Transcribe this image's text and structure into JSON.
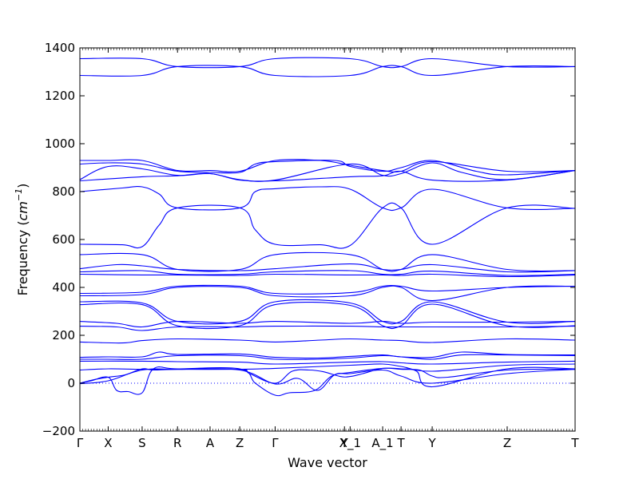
{
  "chart_data": {
    "type": "line",
    "title": "",
    "xlabel": "Wave vector",
    "ylabel_prefix": "Frequency (",
    "ylabel_unit_base": "cm",
    "ylabel_unit_exp": "−1",
    "ylabel_suffix": ")",
    "ylim": [
      -200,
      1400
    ],
    "xlim": [
      0,
      17.5
    ],
    "grid": false,
    "legend": "none",
    "line_color": "#0000ff",
    "zero_line_color": "#0000ff",
    "yticks": [
      -200,
      0,
      200,
      400,
      600,
      800,
      1000,
      1200,
      1400
    ],
    "xticks": [
      {
        "label": "Γ",
        "x": 0
      },
      {
        "label": "X",
        "x": 1
      },
      {
        "label": "S",
        "x": 2.2
      },
      {
        "label": "R",
        "x": 3.45
      },
      {
        "label": "A",
        "x": 4.6
      },
      {
        "label": "Z",
        "x": 5.65
      },
      {
        "label": "Γ",
        "x": 6.9
      },
      {
        "label": "Y",
        "x": 9.35
      },
      {
        "label": "X_1",
        "x": 9.55
      },
      {
        "label": "A_1",
        "x": 10.7
      },
      {
        "label": "T",
        "x": 11.35
      },
      {
        "label": "Y",
        "x": 12.45
      },
      {
        "label": "Z",
        "x": 15.1
      },
      {
        "label": "T",
        "x": 17.5
      }
    ],
    "bands": [
      {
        "x": [
          0,
          2.2,
          3.45,
          5.65,
          6.9,
          9.55,
          10.7,
          11.35,
          12.45,
          15.1,
          17.5
        ],
        "y": [
          1355,
          1355,
          1322,
          1322,
          1355,
          1355,
          1322,
          1322,
          1355,
          1322,
          1322
        ]
      },
      {
        "x": [
          0,
          2.2,
          3.45,
          5.65,
          6.9,
          9.55,
          10.7,
          11.35,
          12.45,
          15.1,
          17.5
        ],
        "y": [
          1285,
          1285,
          1322,
          1322,
          1285,
          1285,
          1322,
          1322,
          1285,
          1322,
          1322
        ]
      },
      {
        "x": [
          0,
          1,
          2.2,
          3.45,
          4.6,
          5.65,
          6.9,
          8.5,
          9.55,
          10.7,
          11.35,
          12.45,
          15.1,
          17.5
        ],
        "y": [
          930,
          930,
          930,
          888,
          888,
          885,
          930,
          930,
          910,
          888,
          885,
          925,
          885,
          888
        ]
      },
      {
        "x": [
          0,
          1,
          2.2,
          3.45,
          4.6,
          5.65,
          6.2,
          6.9,
          9.0,
          9.55,
          10.7,
          11.35,
          12.45,
          14.0,
          15.1,
          17.5
        ],
        "y": [
          915,
          920,
          915,
          885,
          880,
          880,
          915,
          925,
          930,
          905,
          885,
          900,
          930,
          885,
          870,
          888
        ]
      },
      {
        "x": [
          0,
          1,
          2.2,
          3.45,
          4.6,
          5.65,
          6.9,
          9.55,
          10.7,
          11.35,
          12.45,
          13.5,
          15.1,
          17.5
        ],
        "y": [
          850,
          905,
          895,
          868,
          875,
          850,
          848,
          915,
          868,
          875,
          920,
          880,
          850,
          888
        ]
      },
      {
        "x": [
          0,
          2.2,
          3.45,
          4.6,
          5.65,
          6.9,
          9.55,
          10.7,
          11.35,
          12.45,
          15.1,
          17.5
        ],
        "y": [
          845,
          862,
          866,
          875,
          848,
          845,
          862,
          866,
          885,
          848,
          848,
          888
        ]
      },
      {
        "x": [
          0,
          1.5,
          2.2,
          2.8,
          3.45,
          5.65,
          6.2,
          6.9,
          8.5,
          9.55,
          10.7,
          11.35,
          12.45,
          15.1,
          17.5
        ],
        "y": [
          800,
          815,
          820,
          790,
          732,
          732,
          800,
          812,
          820,
          810,
          732,
          732,
          810,
          732,
          730
        ]
      },
      {
        "x": [
          0,
          1.5,
          2.2,
          2.8,
          3.45,
          5.65,
          6.2,
          6.9,
          8.5,
          9.55,
          10.7,
          11.35,
          12.45,
          15.1,
          17.5
        ],
        "y": [
          580,
          578,
          570,
          660,
          732,
          732,
          640,
          580,
          578,
          575,
          732,
          732,
          580,
          732,
          730
        ]
      },
      {
        "x": [
          0,
          2.2,
          3.45,
          5.65,
          6.9,
          9.55,
          10.7,
          11.35,
          12.45,
          15.1,
          17.5
        ],
        "y": [
          537,
          537,
          475,
          475,
          537,
          537,
          475,
          475,
          537,
          475,
          470
        ]
      },
      {
        "x": [
          0,
          1.3,
          2.2,
          3.45,
          5.65,
          6.9,
          9.55,
          10.7,
          11.35,
          12.45,
          15.1,
          17.5
        ],
        "y": [
          478,
          495,
          490,
          475,
          470,
          478,
          498,
          475,
          475,
          495,
          465,
          470
        ]
      },
      {
        "x": [
          0,
          2.2,
          3.45,
          5.65,
          6.9,
          9.55,
          10.7,
          11.35,
          12.45,
          15.1,
          17.5
        ],
        "y": [
          465,
          470,
          455,
          455,
          465,
          470,
          455,
          455,
          468,
          450,
          455
        ]
      },
      {
        "x": [
          0,
          2.2,
          3.45,
          5.65,
          6.9,
          9.55,
          10.7,
          11.35,
          12.45,
          15.1,
          17.5
        ],
        "y": [
          455,
          452,
          452,
          450,
          455,
          452,
          452,
          450,
          455,
          445,
          452
        ]
      },
      {
        "x": [
          0,
          2.2,
          3.45,
          5.65,
          6.9,
          9.55,
          10.7,
          11.35,
          12.45,
          15.1,
          17.5
        ],
        "y": [
          375,
          380,
          405,
          405,
          375,
          378,
          405,
          405,
          385,
          400,
          405
        ]
      },
      {
        "x": [
          0,
          2.2,
          3.45,
          5.65,
          6.9,
          9.55,
          10.7,
          11.35,
          12.45,
          15.1,
          17.5
        ],
        "y": [
          365,
          370,
          400,
          400,
          365,
          365,
          400,
          400,
          345,
          400,
          405
        ]
      },
      {
        "x": [
          0,
          2.2,
          3.45,
          5.65,
          6.9,
          9.55,
          10.7,
          11.35,
          12.45,
          15.1,
          17.5
        ],
        "y": [
          340,
          335,
          258,
          258,
          340,
          335,
          258,
          258,
          340,
          255,
          258
        ]
      },
      {
        "x": [
          0,
          2.2,
          3.45,
          5.65,
          6.9,
          9.55,
          10.7,
          11.35,
          12.45,
          15.1,
          17.5
        ],
        "y": [
          328,
          328,
          240,
          240,
          328,
          325,
          240,
          240,
          330,
          240,
          240
        ]
      },
      {
        "x": [
          0,
          1.3,
          2.2,
          3.45,
          5.65,
          6.9,
          9.55,
          10.7,
          11.35,
          12.45,
          15.1,
          17.5
        ],
        "y": [
          258,
          250,
          235,
          258,
          250,
          258,
          250,
          258,
          250,
          255,
          255,
          258
        ]
      },
      {
        "x": [
          0,
          1.3,
          2.2,
          3.45,
          5.65,
          6.9,
          9.55,
          10.7,
          11.35,
          12.45,
          15.1,
          17.5
        ],
        "y": [
          238,
          235,
          220,
          235,
          235,
          238,
          238,
          235,
          235,
          235,
          235,
          238
        ]
      },
      {
        "x": [
          0,
          1.5,
          2.2,
          3.45,
          5.65,
          6.9,
          8.5,
          9.55,
          10.7,
          11.35,
          12.45,
          15.1,
          17.5
        ],
        "y": [
          172,
          168,
          178,
          185,
          180,
          172,
          180,
          185,
          180,
          178,
          170,
          185,
          180
        ]
      },
      {
        "x": [
          0,
          1,
          2.2,
          2.8,
          3.45,
          5.65,
          6.9,
          8.4,
          9.55,
          10.7,
          11.35,
          12.45,
          13.5,
          15.1,
          17.5
        ],
        "y": [
          108,
          110,
          110,
          130,
          120,
          122,
          108,
          105,
          112,
          118,
          110,
          108,
          130,
          120,
          118
        ]
      },
      {
        "x": [
          0,
          1,
          2.2,
          3.45,
          5.65,
          6.9,
          8.4,
          9.55,
          10.7,
          11.35,
          12.45,
          13.5,
          15.1,
          17.5
        ],
        "y": [
          100,
          100,
          100,
          115,
          115,
          100,
          100,
          105,
          115,
          110,
          100,
          118,
          118,
          115
        ]
      },
      {
        "x": [
          0,
          2.2,
          3.45,
          5.65,
          6.9,
          9.55,
          10.7,
          11.35,
          12.45,
          15.1,
          17.5
        ],
        "y": [
          92,
          92,
          90,
          88,
          80,
          88,
          90,
          85,
          80,
          88,
          92
        ]
      },
      {
        "x": [
          0,
          1,
          2.2,
          3.45,
          5.65,
          6.9,
          9.55,
          10.7,
          11.35,
          12.45,
          15.1,
          17.5
        ],
        "y": [
          55,
          60,
          58,
          58,
          58,
          62,
          75,
          80,
          70,
          50,
          75,
          80
        ]
      },
      {
        "x": [
          0,
          0.5,
          1,
          1.6,
          2.2,
          2.6,
          3.45,
          5.65,
          6.0,
          6.9,
          7.5,
          8.1,
          8.6,
          9.2,
          9.55,
          10.0,
          10.7,
          11.35,
          12.0,
          12.45,
          13.0,
          15.1,
          17.5
        ],
        "y": [
          0,
          15,
          25,
          35,
          60,
          55,
          58,
          58,
          40,
          0,
          50,
          55,
          48,
          28,
          28,
          40,
          62,
          58,
          55,
          30,
          25,
          55,
          58
        ]
      },
      {
        "x": [
          0,
          0.4,
          1,
          1.3,
          1.7,
          2.2,
          2.6,
          3.45,
          5.65,
          6.2,
          6.9,
          7.4,
          8.3,
          8.9,
          9.55,
          10.7,
          11.35,
          11.9,
          12.45,
          15.1,
          17.5
        ],
        "y": [
          0,
          10,
          25,
          -30,
          -35,
          -40,
          60,
          60,
          60,
          0,
          -50,
          -40,
          -30,
          30,
          45,
          62,
          60,
          50,
          -15,
          60,
          60
        ]
      },
      {
        "x": [
          0,
          1,
          2.2,
          3.45,
          5.65,
          6.9,
          7.7,
          8.4,
          9.0,
          9.55,
          10.7,
          11.35,
          12.45,
          15.1,
          17.5
        ],
        "y": [
          -2,
          10,
          55,
          58,
          55,
          -3,
          20,
          -30,
          35,
          40,
          55,
          30,
          0,
          40,
          58
        ]
      }
    ]
  }
}
